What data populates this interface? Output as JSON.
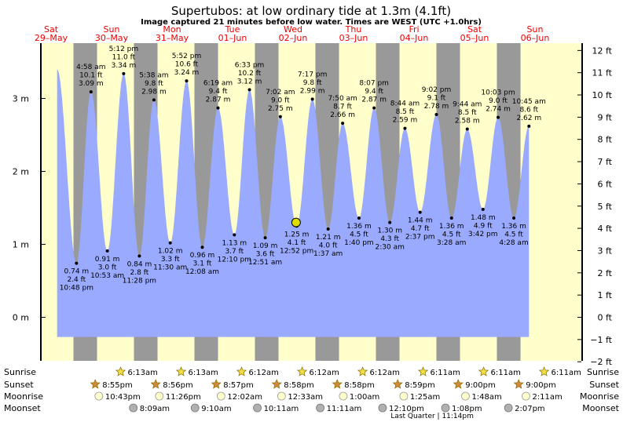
{
  "header": {
    "title": "Supertubos: at low  ordinary tide at 1.3m (4.1ft)",
    "subtitle": "Image captured 21 minutes before low water. Times are WEST (UTC +1.0hrs)"
  },
  "colors": {
    "day": "#ffffcc",
    "night": "#999999",
    "water": "#99aaff",
    "day_label": "#ee0000",
    "current_marker": "#dddd00"
  },
  "chart_data": {
    "type": "area",
    "ylabel_left_unit": "m",
    "ylabel_right_unit": "ft",
    "left_axis_ticks": [
      {
        "value": 0,
        "label": "0 m"
      },
      {
        "value": 1,
        "label": "1 m"
      },
      {
        "value": 2,
        "label": "2 m"
      },
      {
        "value": 3,
        "label": "3 m"
      }
    ],
    "right_axis_ticks": [
      {
        "value": -2,
        "label": "−2 ft"
      },
      {
        "value": -1,
        "label": "−1 ft"
      },
      {
        "value": 0,
        "label": "0 ft"
      },
      {
        "value": 1,
        "label": "1 ft"
      },
      {
        "value": 2,
        "label": "2 ft"
      },
      {
        "value": 3,
        "label": "3 ft"
      },
      {
        "value": 4,
        "label": "4 ft"
      },
      {
        "value": 5,
        "label": "5 ft"
      },
      {
        "value": 6,
        "label": "6 ft"
      },
      {
        "value": 7,
        "label": "7 ft"
      },
      {
        "value": 8,
        "label": "8 ft"
      },
      {
        "value": 9,
        "label": "9 ft"
      },
      {
        "value": 10,
        "label": "10 ft"
      },
      {
        "value": 11,
        "label": "11 ft"
      },
      {
        "value": 12,
        "label": "12 ft"
      }
    ],
    "days": [
      {
        "day": "Sat",
        "date": "29–May",
        "pos": 0
      },
      {
        "day": "Sun",
        "date": "30–May",
        "pos": 1
      },
      {
        "day": "Mon",
        "date": "31–May",
        "pos": 2
      },
      {
        "day": "Tue",
        "date": "01–Jun",
        "pos": 3
      },
      {
        "day": "Wed",
        "date": "02–Jun",
        "pos": 4
      },
      {
        "day": "Thu",
        "date": "03–Jun",
        "pos": 5
      },
      {
        "day": "Fri",
        "date": "04–Jun",
        "pos": 6
      },
      {
        "day": "Sat",
        "date": "05–Jun",
        "pos": 7
      },
      {
        "day": "Sun",
        "date": "06–Jun",
        "pos": 8
      }
    ],
    "night_bands": [
      {
        "start": 0.37,
        "end": 0.76
      },
      {
        "start": 1.37,
        "end": 1.76
      },
      {
        "start": 2.37,
        "end": 2.76
      },
      {
        "start": 3.37,
        "end": 3.76
      },
      {
        "start": 4.37,
        "end": 4.76
      },
      {
        "start": 5.37,
        "end": 5.76
      },
      {
        "start": 6.37,
        "end": 6.76
      },
      {
        "start": 7.37,
        "end": 7.76
      }
    ],
    "tide_extremes": [
      {
        "pos": 0.1,
        "m": 3.4,
        "unlabeled": true
      },
      {
        "pos": 0.42,
        "m": 0.74,
        "m_label": "0.74 m",
        "ft_label": "2.4 ft",
        "time": "10:48 pm",
        "type": "low"
      },
      {
        "pos": 0.66,
        "m": 3.09,
        "m_label": "3.09 m",
        "ft_label": "10.1 ft",
        "time": "4:58 am",
        "type": "high"
      },
      {
        "pos": 0.93,
        "m": 0.91,
        "m_label": "0.91 m",
        "ft_label": "3.0 ft",
        "time": "10:53 am",
        "type": "low"
      },
      {
        "pos": 1.2,
        "m": 3.34,
        "m_label": "3.34 m",
        "ft_label": "11.0 ft",
        "time": "5:12 pm",
        "type": "high"
      },
      {
        "pos": 1.46,
        "m": 0.84,
        "m_label": "0.84 m",
        "ft_label": "2.8 ft",
        "time": "11:28 pm",
        "type": "low"
      },
      {
        "pos": 1.7,
        "m": 2.98,
        "m_label": "2.98 m",
        "ft_label": "9.8 ft",
        "time": "5:38 am",
        "type": "high"
      },
      {
        "pos": 1.97,
        "m": 1.02,
        "m_label": "1.02 m",
        "ft_label": "3.3 ft",
        "time": "11:30 am",
        "type": "low"
      },
      {
        "pos": 2.24,
        "m": 3.24,
        "m_label": "3.24 m",
        "ft_label": "10.6 ft",
        "time": "5:52 pm",
        "type": "high"
      },
      {
        "pos": 2.5,
        "m": 0.96,
        "m_label": "0.96 m",
        "ft_label": "3.1 ft",
        "time": "12:08 am",
        "type": "low"
      },
      {
        "pos": 2.76,
        "m": 2.87,
        "m_label": "2.87 m",
        "ft_label": "9.4 ft",
        "time": "6:19 am",
        "type": "high"
      },
      {
        "pos": 3.03,
        "m": 1.13,
        "m_label": "1.13 m",
        "ft_label": "3.7 ft",
        "time": "12:10 pm",
        "type": "low"
      },
      {
        "pos": 3.28,
        "m": 3.12,
        "m_label": "3.12 m",
        "ft_label": "10.2 ft",
        "time": "6:33 pm",
        "type": "high"
      },
      {
        "pos": 3.54,
        "m": 1.09,
        "m_label": "1.09 m",
        "ft_label": "3.6 ft",
        "time": "12:51 am",
        "type": "low"
      },
      {
        "pos": 3.79,
        "m": 2.75,
        "m_label": "2.75 m",
        "ft_label": "9.0 ft",
        "time": "7:02 am",
        "type": "high"
      },
      {
        "pos": 4.06,
        "m": 1.25,
        "m_label": "1.25 m",
        "ft_label": "4.1 ft",
        "time": "12:52 pm",
        "type": "low"
      },
      {
        "pos": 4.32,
        "m": 2.99,
        "m_label": "2.99 m",
        "ft_label": "9.8 ft",
        "time": "7:17 pm",
        "type": "high"
      },
      {
        "pos": 4.58,
        "m": 1.21,
        "m_label": "1.21 m",
        "ft_label": "4.0 ft",
        "time": "1:37 am",
        "type": "low"
      },
      {
        "pos": 4.82,
        "m": 2.66,
        "m_label": "2.66 m",
        "ft_label": "8.7 ft",
        "time": "7:50 am",
        "type": "high"
      },
      {
        "pos": 5.09,
        "m": 1.36,
        "m_label": "1.36 m",
        "ft_label": "4.5 ft",
        "time": "1:40 pm",
        "type": "low"
      },
      {
        "pos": 5.34,
        "m": 2.87,
        "m_label": "2.87 m",
        "ft_label": "9.4 ft",
        "time": "8:07 pm",
        "type": "high"
      },
      {
        "pos": 5.6,
        "m": 1.3,
        "m_label": "1.30 m",
        "ft_label": "4.3 ft",
        "time": "2:30 am",
        "type": "low"
      },
      {
        "pos": 5.85,
        "m": 2.59,
        "m_label": "2.59 m",
        "ft_label": "8.5 ft",
        "time": "8:44 am",
        "type": "high"
      },
      {
        "pos": 6.1,
        "m": 1.44,
        "m_label": "1.44 m",
        "ft_label": "4.7 ft",
        "time": "2:37 pm",
        "type": "low"
      },
      {
        "pos": 6.37,
        "m": 2.78,
        "m_label": "2.78 m",
        "ft_label": "9.1 ft",
        "time": "9:02 pm",
        "type": "high"
      },
      {
        "pos": 6.62,
        "m": 1.36,
        "m_label": "1.36 m",
        "ft_label": "4.5 ft",
        "time": "3:28 am",
        "type": "low"
      },
      {
        "pos": 6.88,
        "m": 2.58,
        "m_label": "2.58 m",
        "ft_label": "8.5 ft",
        "time": "9:44 am",
        "type": "high"
      },
      {
        "pos": 7.14,
        "m": 1.48,
        "m_label": "1.48 m",
        "ft_label": "4.9 ft",
        "time": "3:42 pm",
        "type": "low"
      },
      {
        "pos": 7.39,
        "m": 2.74,
        "m_label": "2.74 m",
        "ft_label": "9.0 ft",
        "time": "10:03 pm",
        "type": "high"
      },
      {
        "pos": 7.65,
        "m": 1.36,
        "m_label": "1.36 m",
        "ft_label": "4.5 ft",
        "time": "4:28 am",
        "type": "low"
      },
      {
        "pos": 7.9,
        "m": 2.62,
        "m_label": "2.62 m",
        "ft_label": "8.6 ft",
        "time": "10:45 am",
        "type": "high"
      }
    ],
    "current": {
      "pos": 4.05,
      "m": 1.3
    }
  },
  "bottom_rows": {
    "labels": [
      "Sunrise",
      "Sunset",
      "Moonrise",
      "Moonset"
    ],
    "sunrise": [
      {
        "pos": 1.15,
        "time": "6:13am"
      },
      {
        "pos": 2.15,
        "time": "6:13am"
      },
      {
        "pos": 3.15,
        "time": "6:12am"
      },
      {
        "pos": 4.15,
        "time": "6:12am"
      },
      {
        "pos": 5.15,
        "time": "6:12am"
      },
      {
        "pos": 6.15,
        "time": "6:11am"
      },
      {
        "pos": 7.15,
        "time": "6:11am"
      },
      {
        "pos": 8.15,
        "time": "6:11am"
      }
    ],
    "sunset": [
      {
        "pos": 0.73,
        "time": "8:55pm"
      },
      {
        "pos": 1.73,
        "time": "8:56pm"
      },
      {
        "pos": 2.73,
        "time": "8:57pm"
      },
      {
        "pos": 3.73,
        "time": "8:58pm"
      },
      {
        "pos": 4.73,
        "time": "8:58pm"
      },
      {
        "pos": 5.73,
        "time": "8:59pm"
      },
      {
        "pos": 6.73,
        "time": "9:00pm"
      },
      {
        "pos": 7.73,
        "time": "9:00pm"
      }
    ],
    "moonrise": [
      {
        "pos": 0.79,
        "time": "10:43pm"
      },
      {
        "pos": 1.79,
        "time": "11:26pm"
      },
      {
        "pos": 2.81,
        "time": "12:02am"
      },
      {
        "pos": 3.81,
        "time": "12:33am"
      },
      {
        "pos": 4.83,
        "time": "1:00am"
      },
      {
        "pos": 5.83,
        "time": "1:25am"
      },
      {
        "pos": 6.85,
        "time": "1:48am"
      },
      {
        "pos": 7.85,
        "time": "2:11am"
      }
    ],
    "moonset": [
      {
        "pos": 1.36,
        "time": "8:09am"
      },
      {
        "pos": 2.38,
        "time": "9:10am"
      },
      {
        "pos": 3.41,
        "time": "10:11am"
      },
      {
        "pos": 4.45,
        "time": "11:11am"
      },
      {
        "pos": 5.48,
        "time": "12:10pm"
      },
      {
        "pos": 6.52,
        "time": "1:08pm"
      },
      {
        "pos": 7.56,
        "time": "2:07pm"
      }
    ],
    "moon_phase_note": {
      "pos": 6.3,
      "text": "Last Quarter | 11:14pm"
    }
  }
}
